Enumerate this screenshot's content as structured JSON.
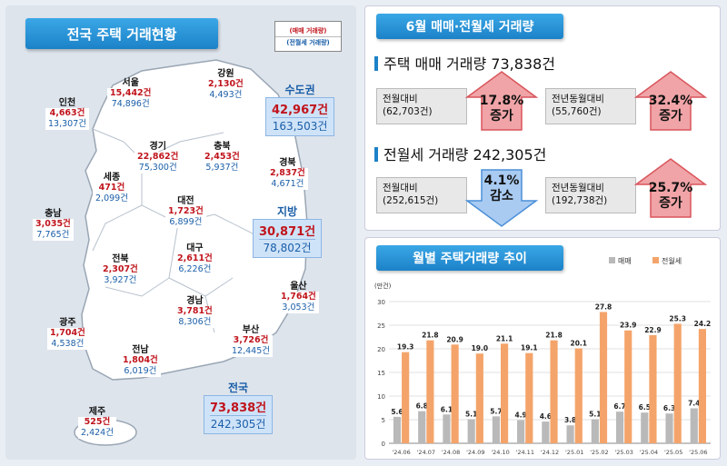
{
  "map": {
    "title": "전국 주택 거래현황",
    "legend": {
      "sale": "(매매 거래량)",
      "rent": "(전월세 거래량)"
    },
    "regions": [
      {
        "key": "seoul",
        "name": "서울",
        "sale": "15,442건",
        "rent": "74,896건"
      },
      {
        "key": "gangwon",
        "name": "강원",
        "sale": "2,130건",
        "rent": "4,493건"
      },
      {
        "key": "incheon",
        "name": "인천",
        "sale": "4,663건",
        "rent": "13,307건"
      },
      {
        "key": "gyeonggi",
        "name": "경기",
        "sale": "22,862건",
        "rent": "75,300건"
      },
      {
        "key": "chungbuk",
        "name": "충북",
        "sale": "2,453건",
        "rent": "5,937건"
      },
      {
        "key": "gyeongbuk",
        "name": "경북",
        "sale": "2,837건",
        "rent": "4,671건"
      },
      {
        "key": "sejong",
        "name": "세종",
        "sale": "471건",
        "rent": "2,099건"
      },
      {
        "key": "daejeon",
        "name": "대전",
        "sale": "1,723건",
        "rent": "6,899건"
      },
      {
        "key": "chungnam",
        "name": "충남",
        "sale": "3,035건",
        "rent": "7,765건"
      },
      {
        "key": "jeonbuk",
        "name": "전북",
        "sale": "2,307건",
        "rent": "3,927건"
      },
      {
        "key": "daegu",
        "name": "대구",
        "sale": "2,611건",
        "rent": "6,226건"
      },
      {
        "key": "ulsan",
        "name": "울산",
        "sale": "1,764건",
        "rent": "3,053건"
      },
      {
        "key": "gwangju",
        "name": "광주",
        "sale": "1,704건",
        "rent": "4,538건"
      },
      {
        "key": "gyeongnam",
        "name": "경남",
        "sale": "3,781건",
        "rent": "8,306건"
      },
      {
        "key": "busan",
        "name": "부산",
        "sale": "3,726건",
        "rent": "12,445건"
      },
      {
        "key": "jeonnam",
        "name": "전남",
        "sale": "1,804건",
        "rent": "6,019건"
      },
      {
        "key": "jeju",
        "name": "제주",
        "sale": "525건",
        "rent": "2,424건"
      }
    ],
    "capital": {
      "name": "수도권",
      "sale": "42,967건",
      "rent": "163,503건"
    },
    "local": {
      "name": "지방",
      "sale": "30,871건",
      "rent": "78,802건"
    },
    "national": {
      "name": "전국",
      "sale": "73,838건",
      "rent": "242,305건"
    }
  },
  "summary": {
    "title": "6월 매매·전월세 거래량",
    "sale_headline": "주택 매매 거래량 73,838건",
    "sale_mom_label": "전월대비",
    "sale_mom_base": "(62,703건)",
    "sale_mom_pct": "17.8%",
    "sale_mom_dir": "증가",
    "sale_yoy_label": "전년동월대비",
    "sale_yoy_base": "(55,760건)",
    "sale_yoy_pct": "32.4%",
    "sale_yoy_dir": "증가",
    "rent_headline": "전월세 거래량 242,305건",
    "rent_mom_label": "전월대비",
    "rent_mom_base": "(252,615건)",
    "rent_mom_pct": "4.1%",
    "rent_mom_dir": "감소",
    "rent_yoy_label": "전년동월대비",
    "rent_yoy_base": "(192,738건)",
    "rent_yoy_pct": "25.7%",
    "rent_yoy_dir": "증가",
    "colors": {
      "up": "#e06a6f",
      "down": "#4a8fd8"
    }
  },
  "chart_title": "월별 주택거래량 추이",
  "chart_data": {
    "type": "bar",
    "ylabel": "(만건)",
    "ylim": [
      0,
      30
    ],
    "yticks": [
      0,
      5,
      10,
      15,
      20,
      25,
      30
    ],
    "grid": true,
    "legend_position": "top-right",
    "categories": [
      "'24.06",
      "'24.07",
      "'24.08",
      "'24.09",
      "'24.10",
      "'24.11",
      "'24.12",
      "'25.01",
      "'25.02",
      "'25.03",
      "'25.04",
      "'25.05",
      "'25.06"
    ],
    "series": [
      {
        "name": "매매",
        "color": "#b9b9b9",
        "values": [
          5.6,
          6.8,
          6.1,
          5.1,
          5.7,
          4.9,
          4.6,
          3.8,
          5.1,
          6.7,
          6.5,
          6.3,
          7.4
        ]
      },
      {
        "name": "전월세",
        "color": "#f4a46a",
        "values": [
          19.3,
          21.8,
          20.9,
          19.0,
          21.1,
          19.1,
          21.8,
          20.1,
          27.8,
          23.9,
          22.9,
          25.3,
          24.2
        ]
      }
    ]
  }
}
